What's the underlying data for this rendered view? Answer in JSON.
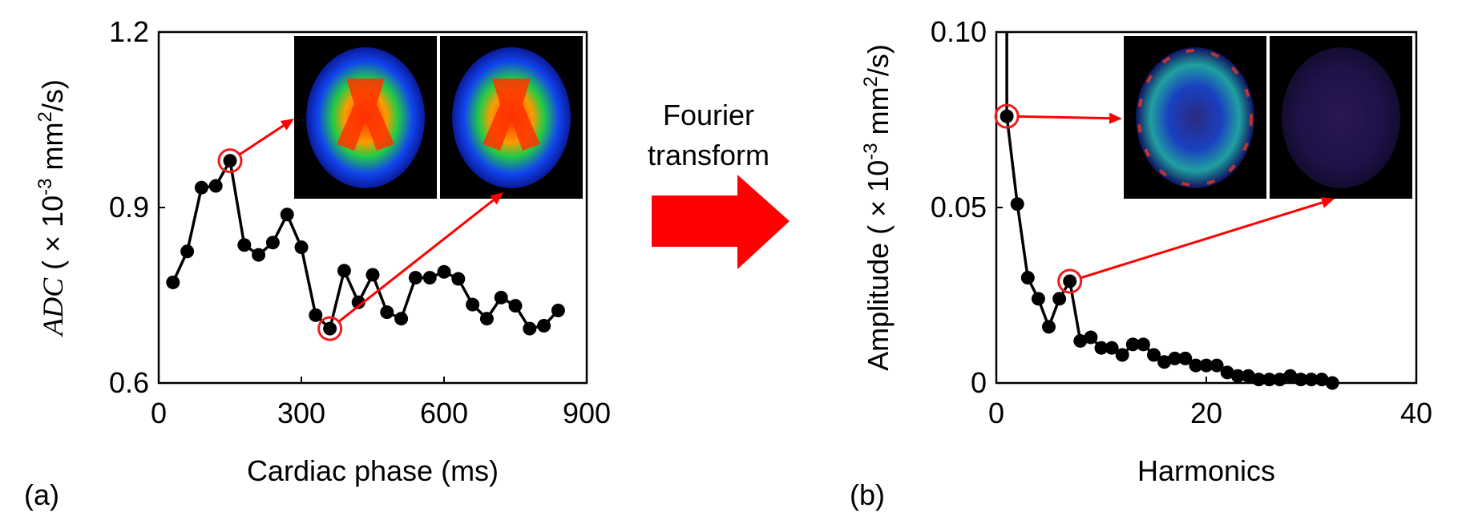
{
  "transform_label": [
    "Fourier",
    "transform"
  ],
  "colors": {
    "line": "#000000",
    "highlight": "#ee1c1c",
    "arrow": "#ff0000",
    "inset_bg": "#000000"
  },
  "chart_data": [
    {
      "type": "line",
      "panel_label": "(a)",
      "xlabel": "Cardiac phase (ms)",
      "ylabel": {
        "italic": "ADC",
        "rest": " ( × 10",
        "sup1": "-3",
        "mid": " mm",
        "sup2": "2",
        "end": "/s)"
      },
      "xlim": [
        0,
        900
      ],
      "ylim": [
        0.6,
        1.2
      ],
      "xticks": [
        "0",
        "300",
        "600",
        "900"
      ],
      "yticks": [
        "0.6",
        "0.9",
        "1.2"
      ],
      "x": [
        30,
        60,
        90,
        120,
        150,
        180,
        210,
        240,
        270,
        300,
        330,
        360,
        390,
        420,
        450,
        480,
        510,
        540,
        570,
        600,
        630,
        660,
        690,
        720,
        750,
        780,
        810,
        840
      ],
      "y": [
        0.772,
        0.825,
        0.934,
        0.937,
        0.98,
        0.836,
        0.819,
        0.84,
        0.888,
        0.832,
        0.716,
        0.693,
        0.792,
        0.738,
        0.785,
        0.721,
        0.71,
        0.78,
        0.78,
        0.79,
        0.778,
        0.734,
        0.71,
        0.746,
        0.732,
        0.693,
        0.698,
        0.724
      ],
      "highlighted_x": [
        150,
        360
      ],
      "insets": 2
    },
    {
      "type": "scatter-line",
      "panel_label": "(b)",
      "xlabel": "Harmonics",
      "ylabel": {
        "italic": "",
        "rest": "Amplitude ( × 10",
        "sup1": "-3",
        "mid": " mm",
        "sup2": "2",
        "end": "/s)"
      },
      "xlim": [
        0,
        40
      ],
      "ylim": [
        0,
        0.1
      ],
      "xticks": [
        "0",
        "20",
        "40"
      ],
      "yticks": [
        "0",
        "0.05",
        "0.10"
      ],
      "x": [
        1,
        2,
        3,
        4,
        5,
        6,
        7,
        8,
        9,
        10,
        11,
        12,
        13,
        14,
        15,
        16,
        17,
        18,
        19,
        20,
        21,
        22,
        23,
        24,
        25,
        26,
        27,
        28,
        29,
        30,
        31,
        32
      ],
      "y": [
        0.076,
        0.051,
        0.03,
        0.024,
        0.016,
        0.024,
        0.029,
        0.012,
        0.013,
        0.01,
        0.01,
        0.008,
        0.011,
        0.011,
        0.008,
        0.006,
        0.007,
        0.007,
        0.005,
        0.005,
        0.005,
        0.003,
        0.002,
        0.002,
        0.001,
        0.001,
        0.001,
        0.002,
        0.001,
        0.001,
        0.001,
        0.0
      ],
      "dc_spike_x": 1,
      "highlighted_x": [
        1,
        7
      ],
      "insets": 2
    }
  ]
}
